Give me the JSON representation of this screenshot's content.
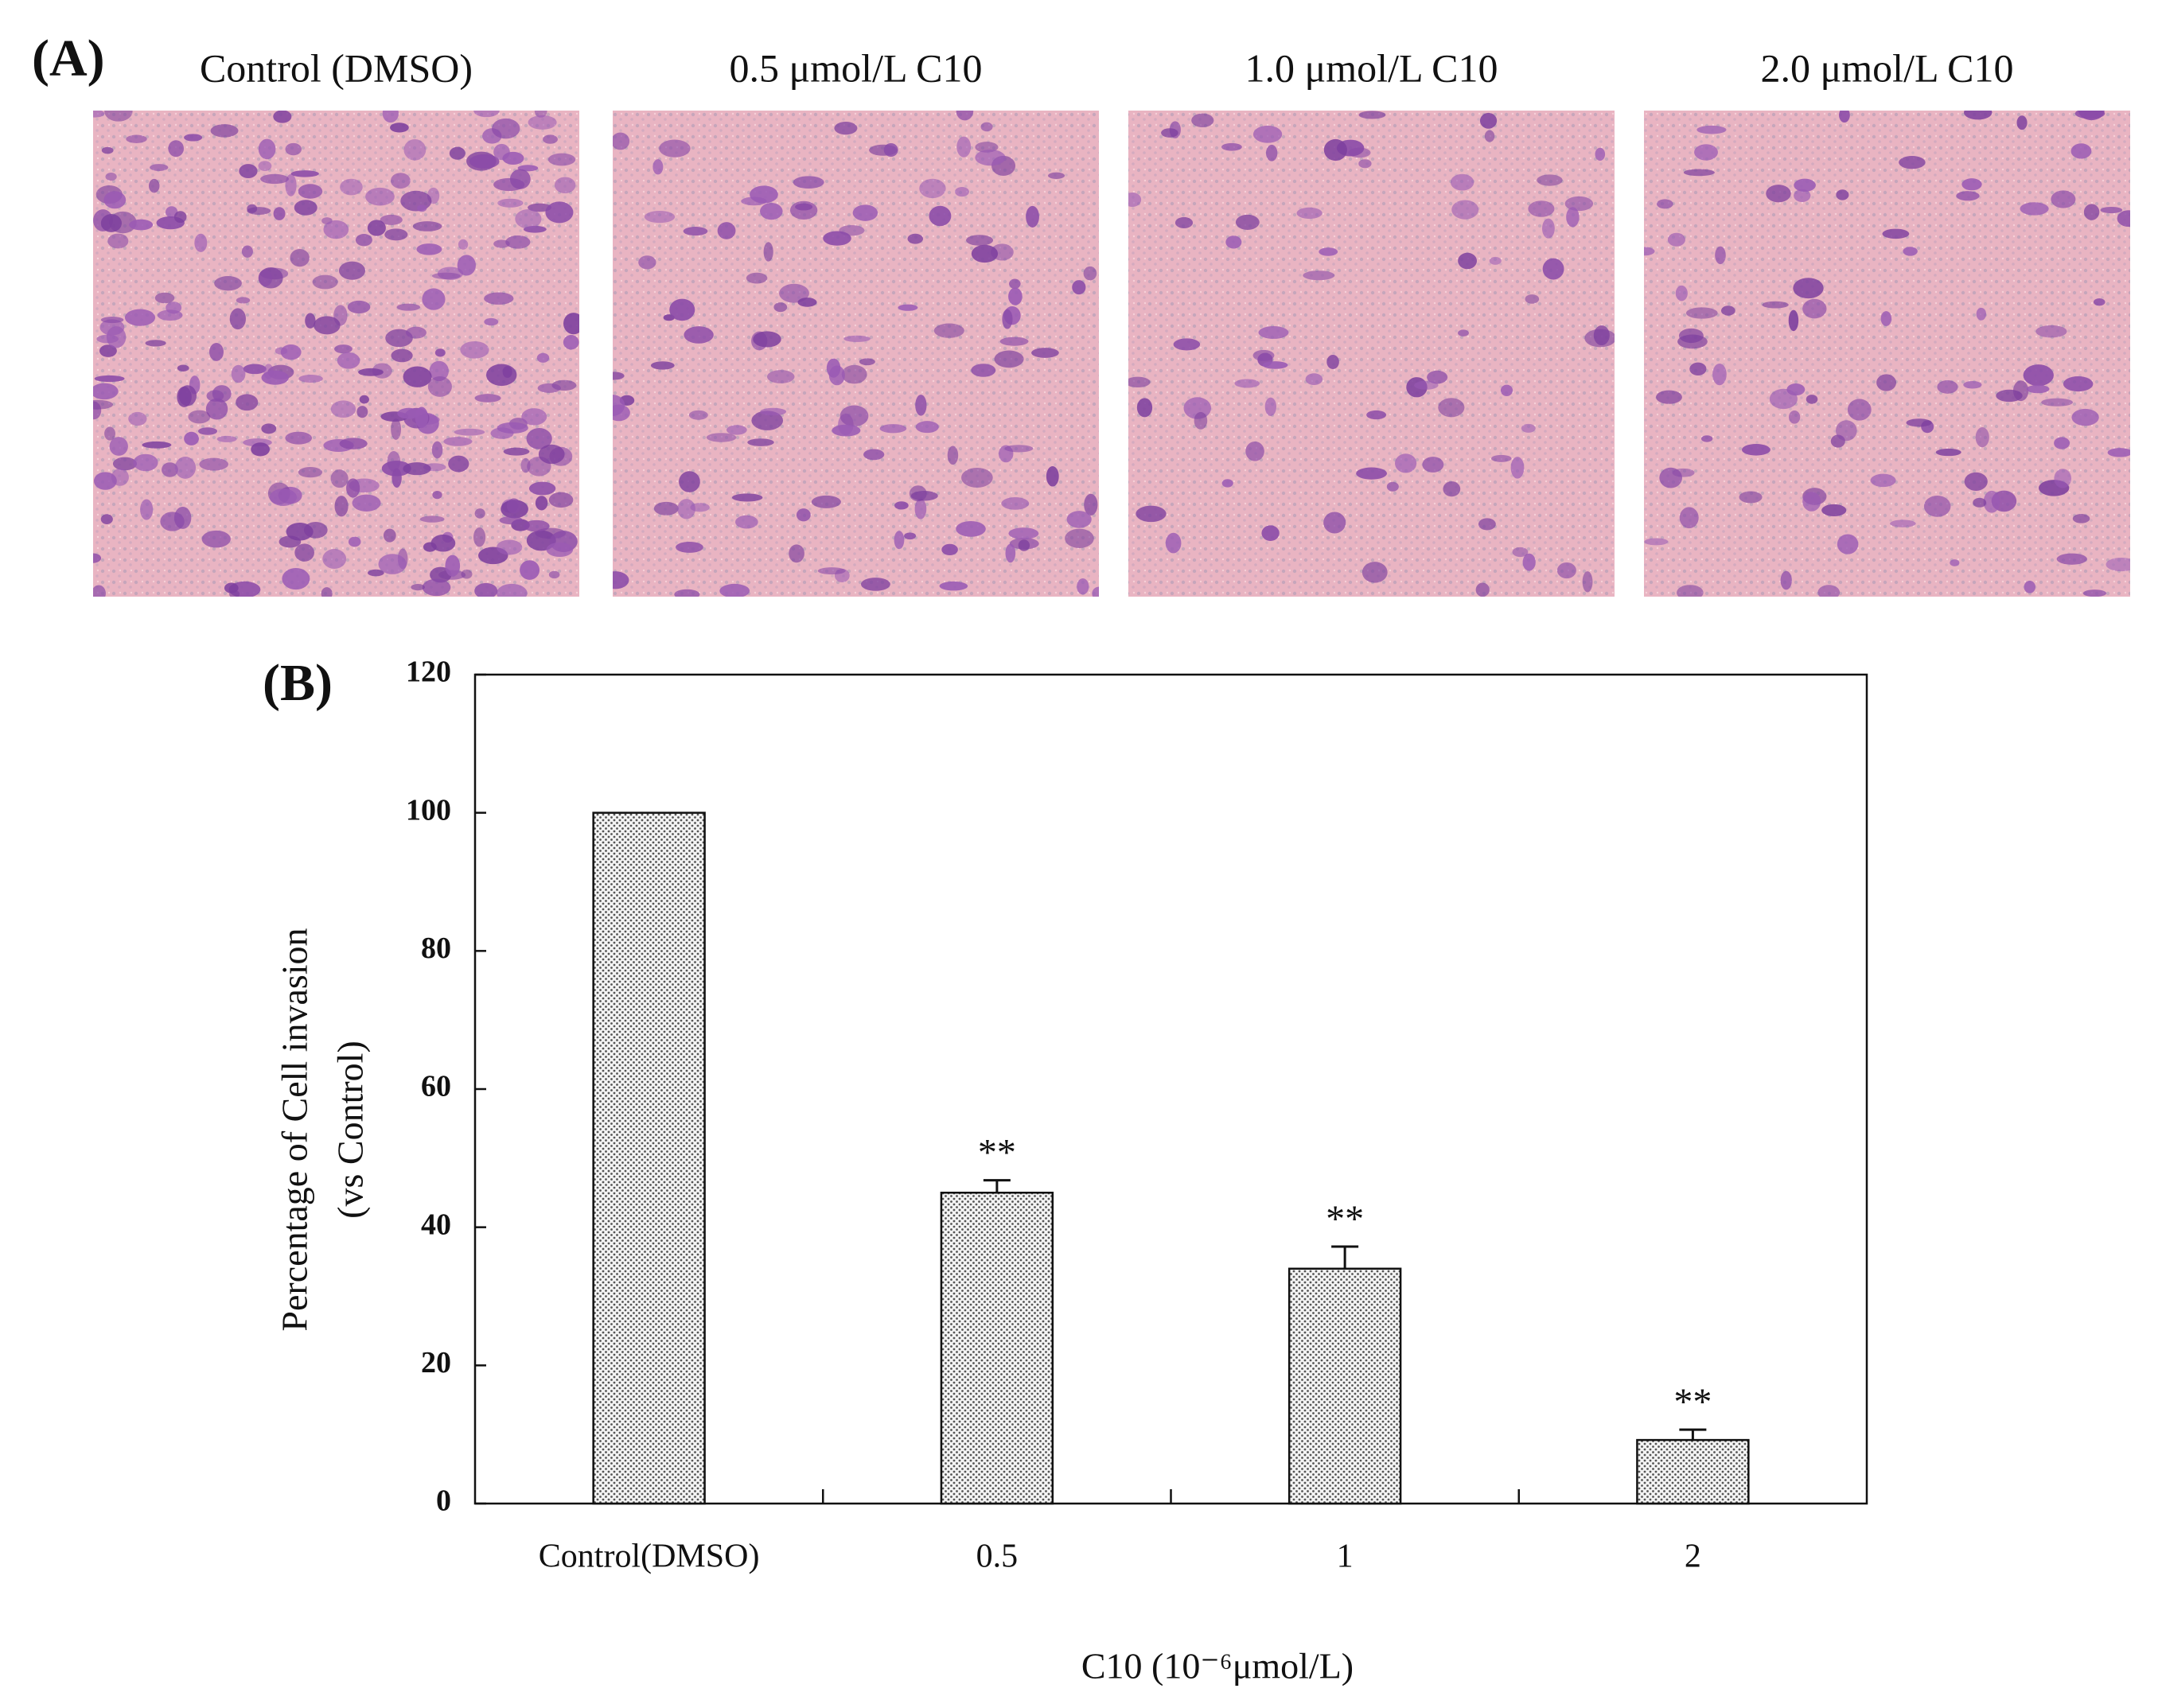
{
  "panel_a": {
    "label": "(A)",
    "images": [
      {
        "title": "Control (DMSO)"
      },
      {
        "title": "0.5 μmol/L C10"
      },
      {
        "title": "1.0 μmol/L C10"
      },
      {
        "title": "2.0 μmol/L C10"
      }
    ]
  },
  "chart_data": {
    "type": "bar",
    "panel_label": "(B)",
    "categories": [
      "Control(DMSO)",
      "0.5",
      "1",
      "2"
    ],
    "values": [
      100,
      45,
      34,
      9.2
    ],
    "error": [
      null,
      1.8,
      3.2,
      1.5
    ],
    "significance": [
      null,
      "**",
      "**",
      "**"
    ],
    "ylim": [
      0,
      120
    ],
    "yticks": [
      0,
      20,
      40,
      60,
      80,
      100,
      120
    ],
    "y_label": [
      "Percentage of Cell invasion",
      "(vs Control)"
    ],
    "x_label": "C10 (10⁻⁶μmol/L)",
    "color": "#c8c8c8",
    "grid": false
  }
}
